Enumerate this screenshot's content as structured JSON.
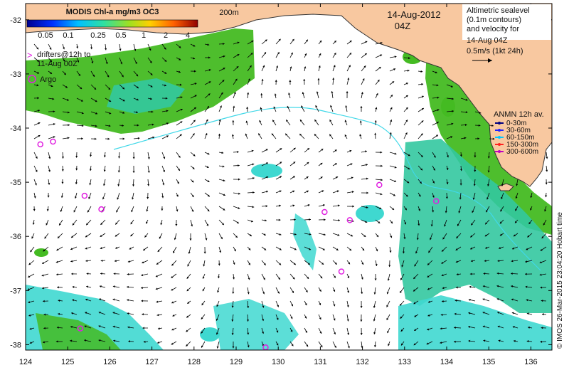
{
  "colorbar": {
    "title": "MODIS Chl-a mg/m3 OC3",
    "labels": [
      "0.05",
      "0.1",
      "0.25",
      "0.5",
      "1",
      "2",
      "4"
    ]
  },
  "map": {
    "date": "14-Aug-2012",
    "time": "04Z",
    "contour_label": "200m",
    "lon_ticks": [
      "124",
      "125",
      "126",
      "127",
      "128",
      "129",
      "130",
      "131",
      "132",
      "133",
      "134",
      "135",
      "136"
    ],
    "lat_ticks": [
      "-32",
      "-33",
      "-34",
      "-35",
      "-36",
      "-37",
      "-38"
    ],
    "lon_range": [
      124,
      136.5
    ],
    "lat_range": [
      -38.1,
      -31.7
    ]
  },
  "legend_topright": {
    "lines": [
      "Altimetric sealevel",
      "(0.1m contours)",
      "and velocity for",
      "14-Aug 04Z"
    ],
    "scale_label": "0.5m/s (1kt 24h)"
  },
  "legend_left": {
    "drifters_lines": [
      "drifters@12h to",
      "11-Aug 00Z"
    ],
    "argo_label": "Argo"
  },
  "anmn": {
    "title": "ANMN 12h av.",
    "items": [
      {
        "label": "0-30m",
        "color": "#000080"
      },
      {
        "label": "30-60m",
        "color": "#2020ff"
      },
      {
        "label": "60-150m",
        "color": "#00c8ff"
      },
      {
        "label": "150-300m",
        "color": "#ff2020"
      },
      {
        "label": "300-600m",
        "color": "#c000c0"
      }
    ]
  },
  "credit": "© IMOS 26-Mar-2015 23:04:20 Hobart time",
  "argo_floats": [
    [
      124.35,
      -34.3
    ],
    [
      124.65,
      -34.25
    ],
    [
      125.4,
      -35.25
    ],
    [
      125.8,
      -35.5
    ],
    [
      131.1,
      -35.55
    ],
    [
      131.7,
      -35.7
    ],
    [
      132.4,
      -35.05
    ],
    [
      133.75,
      -35.35
    ],
    [
      131.5,
      -36.65
    ],
    [
      125.3,
      -37.7
    ],
    [
      129.7,
      -38.05
    ]
  ],
  "colors": {
    "land": "#f8c8a0",
    "coast": "#333333",
    "chl_green": "#44bb22",
    "chl_teal": "#33c8a0",
    "chl_cyan": "#3fd8d0",
    "argo": "#e020e0",
    "contour": "#40d8e8"
  }
}
